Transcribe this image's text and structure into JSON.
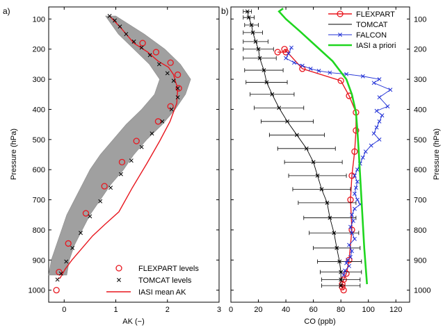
{
  "chart_data": [
    {
      "type": "line",
      "panel_label": "a)",
      "xlabel": "AK (−)",
      "ylabel": "Pressure (hPa)",
      "xlim": [
        -0.3,
        3
      ],
      "ylim": [
        1040,
        60
      ],
      "y_reversed": true,
      "xticks": [
        0,
        1,
        2,
        3
      ],
      "yticks": [
        100,
        200,
        300,
        400,
        500,
        600,
        700,
        800,
        900,
        1000
      ],
      "grid": false,
      "legend_position": "bottom-right",
      "legend": [
        "FLEXPART levels",
        "TOMCAT levels",
        "IASI mean AK"
      ],
      "envelope": {
        "color": "#a0a0a0",
        "y": [
          90,
          150,
          200,
          250,
          300,
          350,
          400,
          450,
          500,
          550,
          600,
          650,
          700,
          750,
          800,
          850,
          900,
          950
        ],
        "x_min": [
          0.8,
          1.05,
          1.35,
          1.65,
          1.85,
          1.75,
          1.5,
          1.2,
          0.95,
          0.7,
          0.5,
          0.35,
          0.2,
          0.05,
          -0.05,
          -0.15,
          -0.25,
          -0.3
        ],
        "x_max": [
          1.0,
          1.55,
          1.95,
          2.25,
          2.45,
          2.35,
          2.15,
          1.9,
          1.6,
          1.35,
          1.15,
          0.9,
          0.7,
          0.5,
          0.35,
          0.2,
          0.1,
          0.05
        ]
      },
      "series": [
        {
          "name": "IASI mean AK",
          "color": "#e8171f",
          "style": "line",
          "x": [
            0.88,
            1.1,
            1.35,
            1.62,
            1.82,
            2.02,
            2.12,
            2.16,
            2.2,
            2.18,
            2.05,
            1.85,
            1.6,
            1.32,
            1.06,
            0.8,
            0.55,
            0.35,
            0.15,
            0.02,
            -0.08,
            -0.12
          ],
          "y": [
            90,
            130,
            180,
            210,
            240,
            260,
            285,
            310,
            330,
            380,
            440,
            505,
            580,
            660,
            740,
            780,
            820,
            860,
            900,
            930,
            960,
            960
          ]
        },
        {
          "name": "FLEXPART levels",
          "color": "#e8171f",
          "style": "circle",
          "x": [
            1.52,
            1.78,
            2.06,
            2.2,
            2.22,
            2.06,
            1.82,
            1.4,
            1.12,
            0.78,
            0.42,
            0.08,
            -0.1,
            -0.15
          ],
          "y": [
            180,
            210,
            245,
            285,
            330,
            390,
            440,
            505,
            575,
            655,
            745,
            845,
            940,
            1000
          ]
        },
        {
          "name": "TOMCAT levels",
          "color": "#000000",
          "style": "x",
          "x": [
            0.88,
            0.98,
            1.08,
            1.2,
            1.35,
            1.5,
            1.66,
            1.84,
            2.0,
            2.12,
            2.2,
            2.2,
            2.08,
            1.9,
            1.7,
            1.5,
            1.3,
            1.1,
            0.9,
            0.7,
            0.5,
            0.32,
            0.16,
            0.04,
            -0.06,
            -0.13
          ],
          "y": [
            90,
            105,
            125,
            150,
            175,
            195,
            220,
            250,
            280,
            305,
            330,
            360,
            400,
            440,
            480,
            525,
            570,
            615,
            660,
            705,
            755,
            810,
            860,
            905,
            945,
            965
          ]
        }
      ]
    },
    {
      "type": "line",
      "panel_label": "b)",
      "xlabel": "CO (ppb)",
      "ylabel": "Pressure (hPa)",
      "xlim": [
        0,
        130
      ],
      "ylim": [
        1040,
        60
      ],
      "y_reversed": true,
      "xticks": [
        0,
        20,
        40,
        60,
        80,
        100,
        120
      ],
      "yticks": [
        100,
        200,
        300,
        400,
        500,
        600,
        700,
        800,
        900,
        1000
      ],
      "grid": false,
      "legend_position": "top-right",
      "legend": [
        "FLEXPART",
        "TOMCAT",
        "FALCON",
        "IASI a priori"
      ],
      "series": [
        {
          "name": "FLEXPART",
          "color": "#e8171f",
          "style": "line-circle",
          "x": [
            34,
            40,
            39,
            52,
            80,
            86,
            91,
            91,
            90,
            88,
            87,
            88,
            86,
            84,
            82,
            81,
            81,
            82
          ],
          "y": [
            210,
            210,
            200,
            265,
            305,
            355,
            410,
            470,
            540,
            620,
            700,
            800,
            900,
            945,
            965,
            980,
            990,
            1000
          ]
        },
        {
          "name": "TOMCAT",
          "color": "#000000",
          "style": "line-x-errorbar",
          "x": [
            12,
            13,
            15,
            16,
            18,
            20,
            21,
            24,
            26,
            30,
            35,
            41,
            48,
            55,
            60,
            63,
            66,
            70,
            72,
            75,
            77,
            79,
            80,
            80,
            80
          ],
          "y": [
            75,
            95,
            120,
            145,
            175,
            200,
            230,
            270,
            310,
            350,
            395,
            440,
            485,
            530,
            575,
            620,
            665,
            710,
            760,
            810,
            860,
            905,
            940,
            965,
            985
          ],
          "err": [
            3,
            4,
            5,
            7,
            9,
            11,
            12,
            14,
            15,
            16,
            18,
            19,
            20,
            21,
            21,
            21,
            21,
            21,
            19,
            18,
            17,
            16,
            15,
            14,
            14
          ]
        },
        {
          "name": "FALCON",
          "color": "#1f2fd6",
          "style": "line-x",
          "x": [
            44,
            42,
            40,
            46,
            52,
            58,
            64,
            72,
            84,
            96,
            108,
            104,
            116,
            108,
            114,
            106,
            110,
            108,
            106,
            104,
            108,
            102,
            98,
            96,
            94,
            92,
            90,
            92,
            91,
            90,
            92,
            94,
            90,
            88,
            89,
            87,
            88,
            90,
            86,
            88,
            87,
            85,
            84,
            86,
            83,
            82
          ],
          "y": [
            195,
            215,
            230,
            245,
            255,
            265,
            272,
            278,
            283,
            290,
            300,
            312,
            335,
            360,
            390,
            405,
            420,
            440,
            460,
            480,
            500,
            520,
            540,
            560,
            580,
            600,
            620,
            640,
            660,
            680,
            700,
            715,
            730,
            750,
            770,
            790,
            810,
            830,
            850,
            870,
            890,
            900,
            910,
            920,
            935,
            950
          ]
        },
        {
          "name": "IASI a priori",
          "color": "#1fd61f",
          "style": "thick-line",
          "x": [
            38,
            35,
            40,
            50,
            62,
            74,
            84,
            88,
            91,
            92,
            93,
            94,
            95,
            96,
            97,
            98,
            99
          ],
          "y": [
            65,
            75,
            100,
            140,
            190,
            240,
            300,
            350,
            410,
            470,
            540,
            620,
            700,
            780,
            860,
            920,
            980
          ]
        }
      ]
    }
  ]
}
